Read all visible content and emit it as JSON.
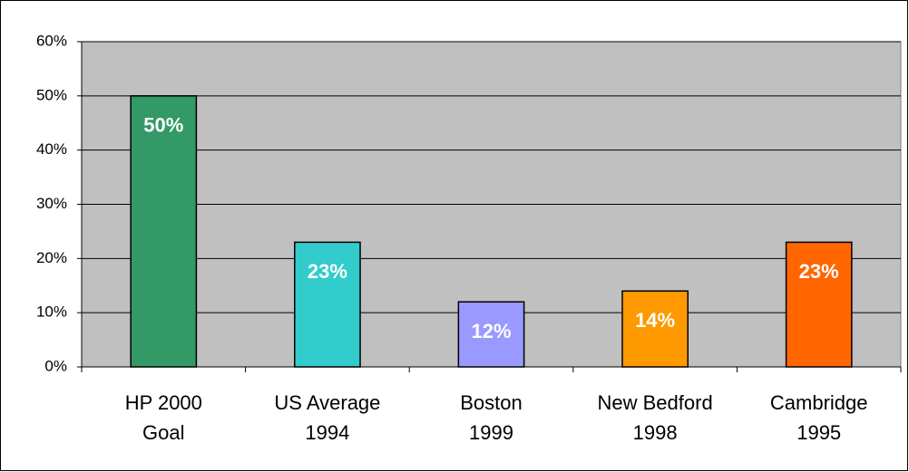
{
  "chart_data": {
    "type": "bar",
    "categories": [
      "HP 2000\nGoal",
      "US Average\n1994",
      "Boston\n1999",
      "New Bedford\n1998",
      "Cambridge\n1995"
    ],
    "values": [
      50,
      23,
      12,
      14,
      23
    ],
    "value_labels": [
      "50%",
      "23%",
      "12%",
      "14%",
      "23%"
    ],
    "colors": [
      "#339966",
      "#33cccc",
      "#9999ff",
      "#ff9900",
      "#ff6600"
    ],
    "ylim": [
      0,
      60
    ],
    "yticks": [
      {
        "value": 0,
        "label": "0%"
      },
      {
        "value": 10,
        "label": "10%"
      },
      {
        "value": 20,
        "label": "20%"
      },
      {
        "value": 30,
        "label": "30%"
      },
      {
        "value": 40,
        "label": "40%"
      },
      {
        "value": 50,
        "label": "50%"
      },
      {
        "value": 60,
        "label": "60%"
      }
    ],
    "grid": true
  }
}
